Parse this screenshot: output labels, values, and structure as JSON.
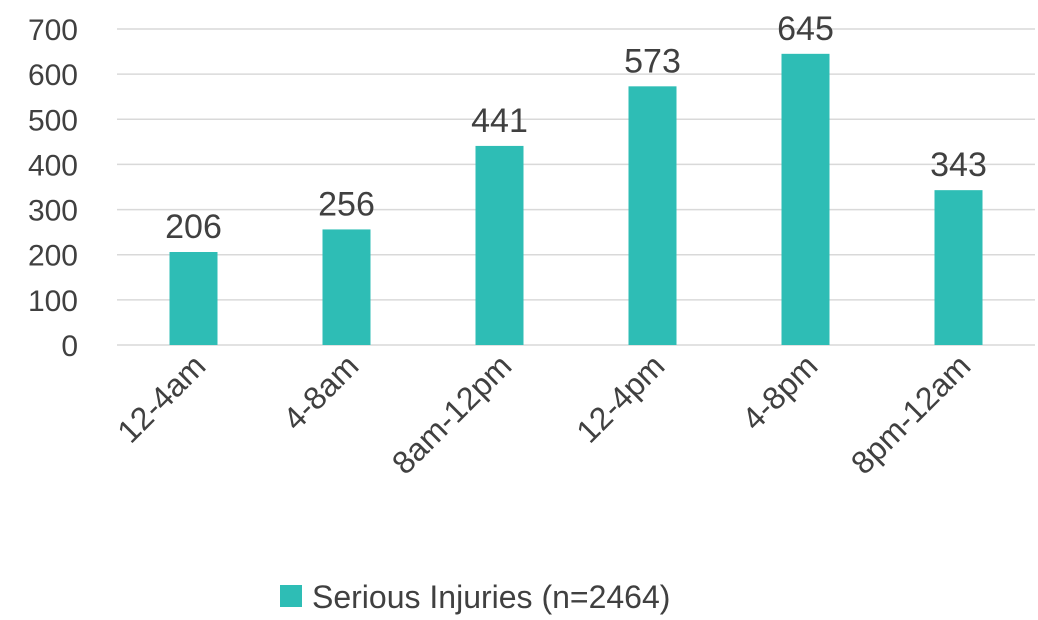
{
  "chart_data": {
    "type": "bar",
    "categories": [
      "12-4am",
      "4-8am",
      "8am-12pm",
      "12-4pm",
      "4-8pm",
      "8pm-12am"
    ],
    "series": [
      {
        "name": "Serious Injuries (n=2464)",
        "values": [
          206,
          256,
          441,
          573,
          645,
          343
        ],
        "color": "#2EBDB5"
      }
    ],
    "yticks": [
      0,
      100,
      200,
      300,
      400,
      500,
      600,
      700
    ],
    "ylim": [
      0,
      700
    ],
    "grid": true,
    "data_labels": true,
    "legend_position": "bottom",
    "gridline_color": "#D9D9D9",
    "text_color": "#404040"
  }
}
